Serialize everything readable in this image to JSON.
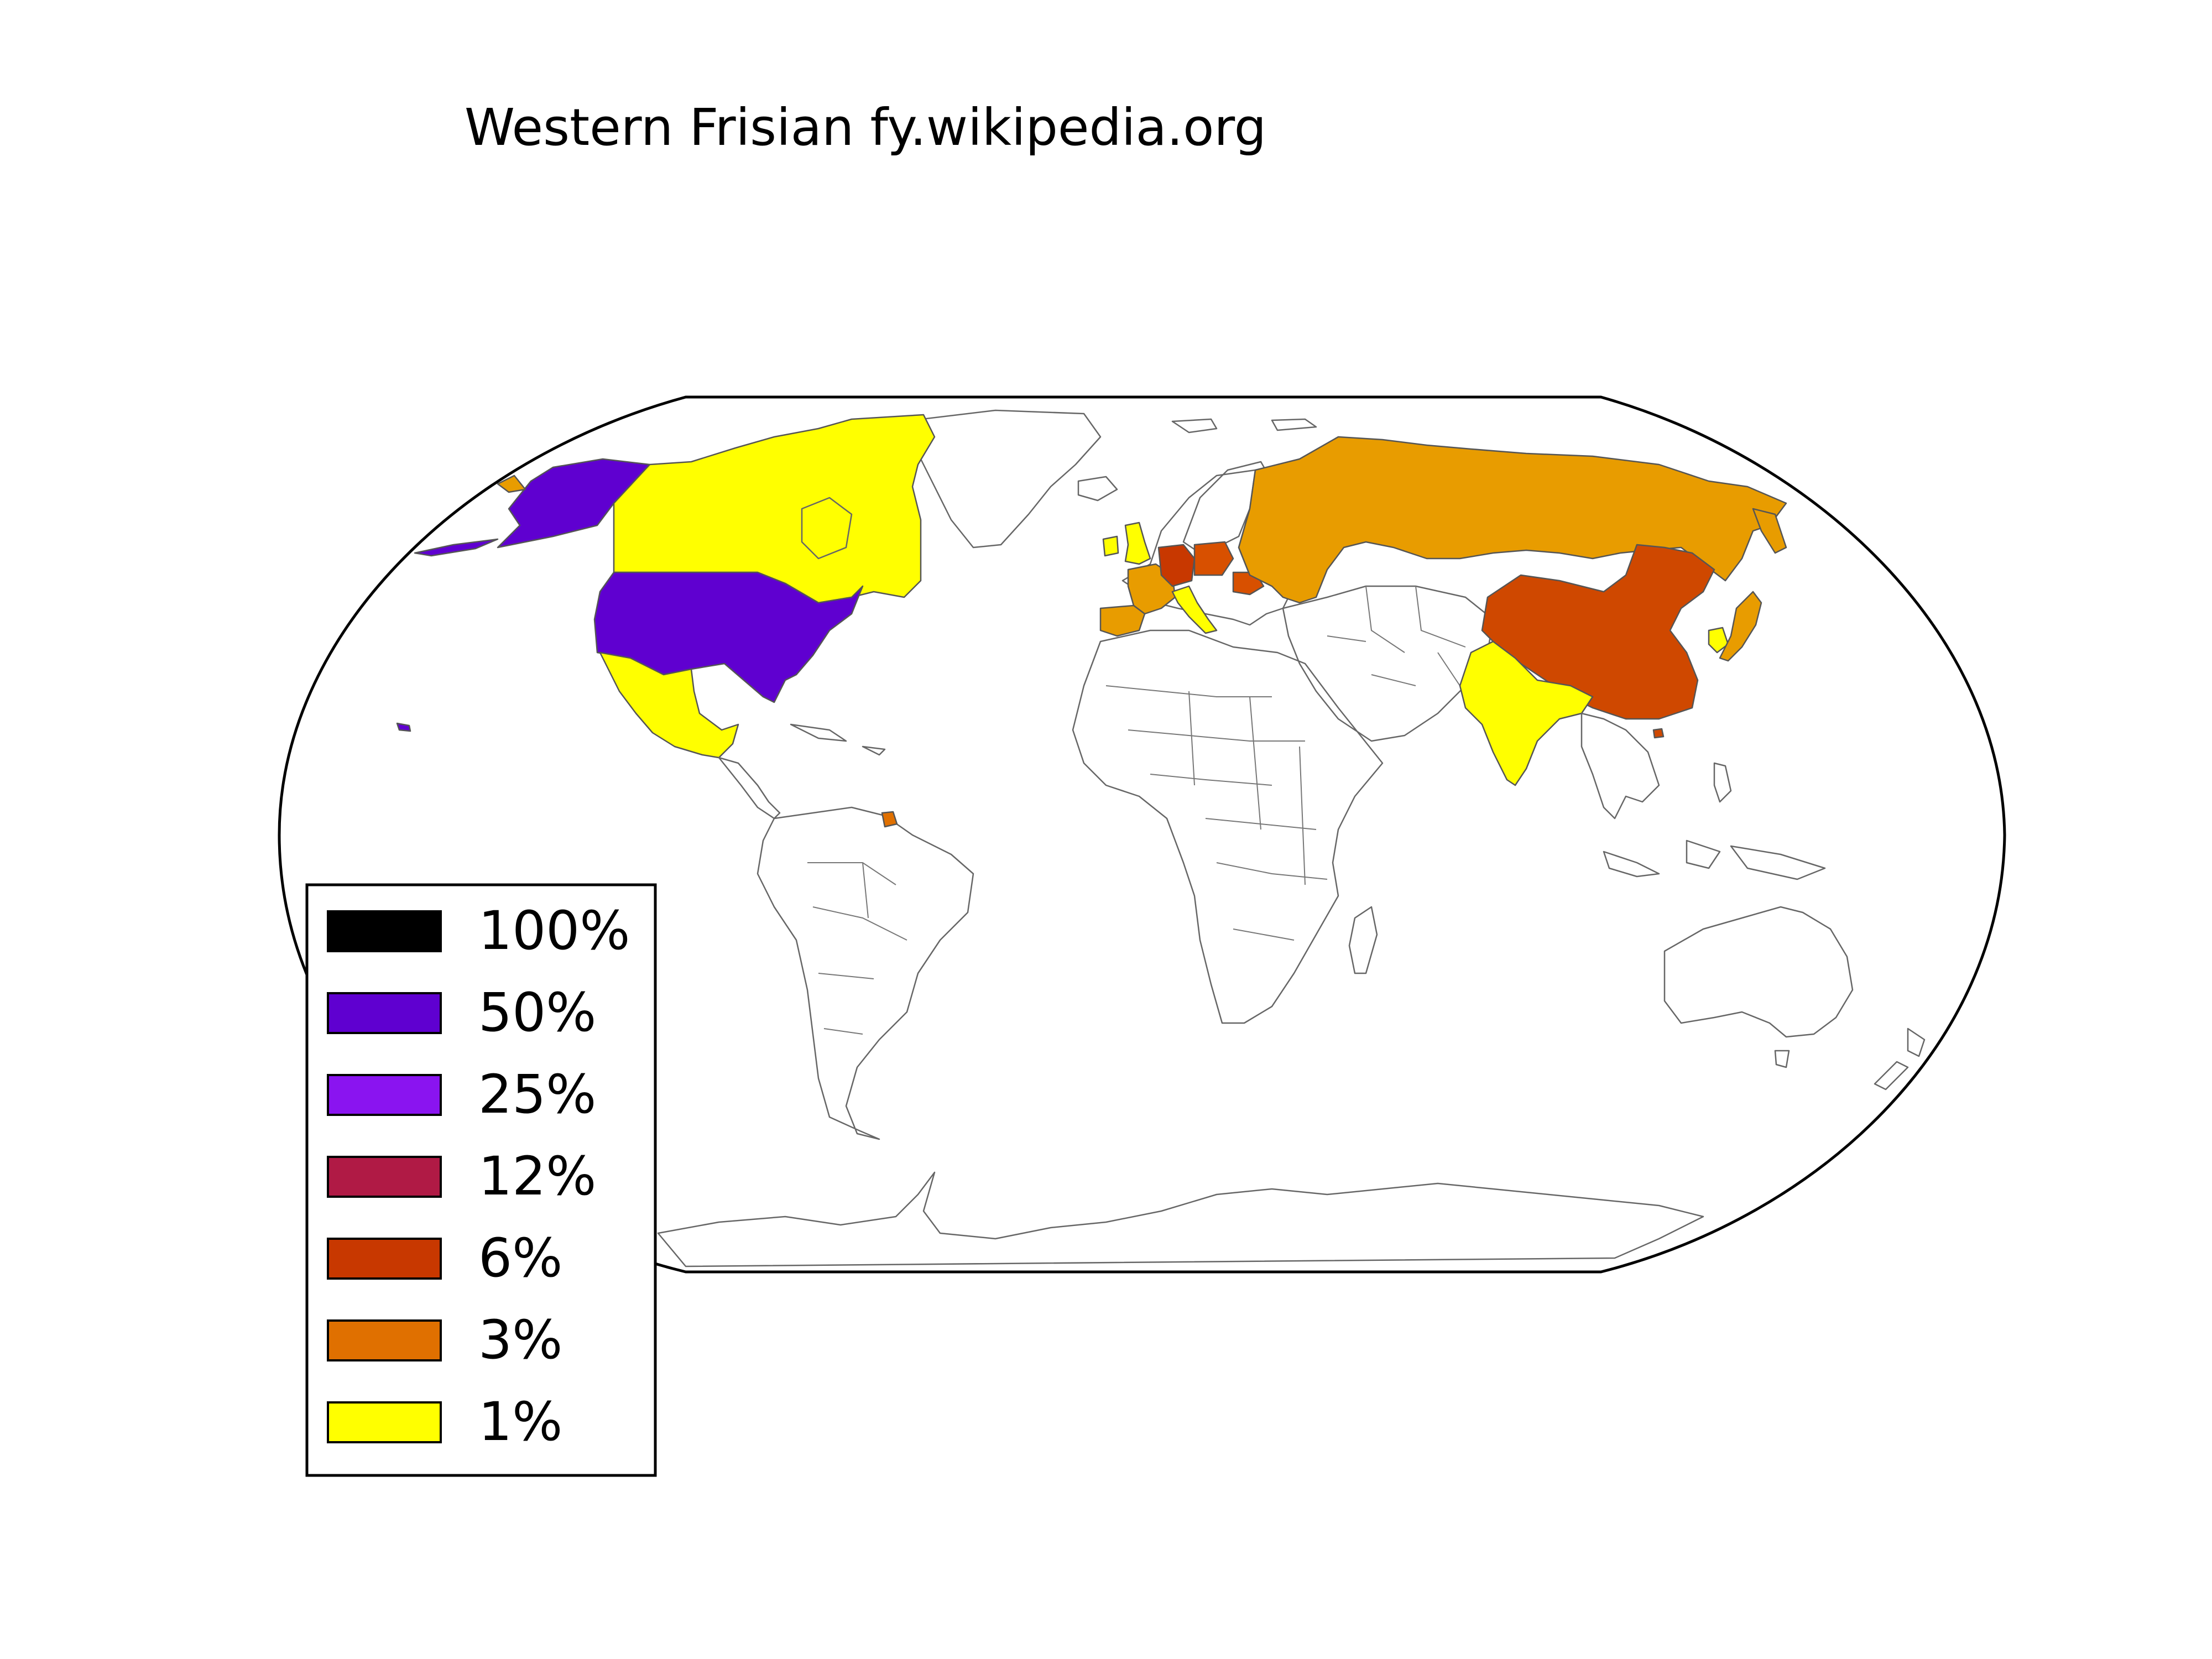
{
  "title": "Western Frisian fy.wikipedia.org",
  "legend": [
    {
      "label": "100%",
      "color": "#000000"
    },
    {
      "label": "50%",
      "color": "#5f00d0"
    },
    {
      "label": "25%",
      "color": "#8a14f0"
    },
    {
      "label": "12%",
      "color": "#b01a45"
    },
    {
      "label": "6%",
      "color": "#c83800"
    },
    {
      "label": "3%",
      "color": "#e07000"
    },
    {
      "label": "1%",
      "color": "#ffff00"
    }
  ],
  "colors": {
    "usa": "#5f00d0",
    "canada": "#ffff00",
    "mexico": "#ffff00",
    "russia": "#e89c00",
    "china": "#cf4800",
    "india": "#ffff00",
    "japan": "#e89c00",
    "korea": "#ffff00",
    "germany": "#c83800",
    "poland": "#d85000",
    "france": "#e89c00",
    "italy": "#ffff00",
    "uk": "#ffff00",
    "romania": "#d85000",
    "guiana": "#e07000",
    "spain": "#e89c00"
  }
}
